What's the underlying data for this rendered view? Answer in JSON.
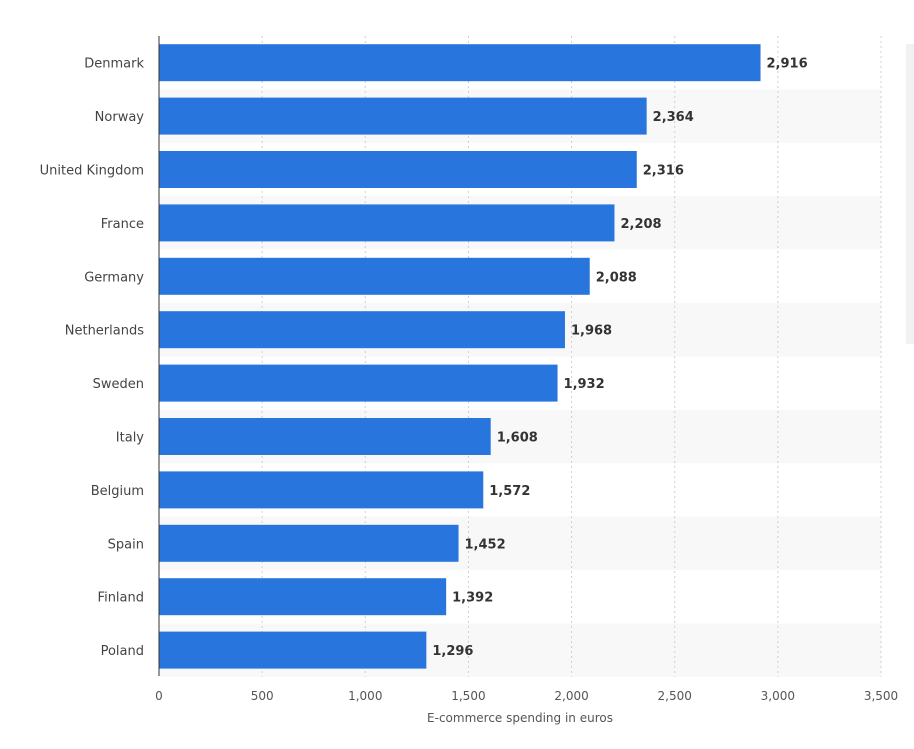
{
  "chart_data": {
    "type": "bar",
    "orientation": "horizontal",
    "categories": [
      "Denmark",
      "Norway",
      "United Kingdom",
      "France",
      "Germany",
      "Netherlands",
      "Sweden",
      "Italy",
      "Belgium",
      "Spain",
      "Finland",
      "Poland"
    ],
    "values": [
      2916,
      2364,
      2316,
      2208,
      2088,
      1968,
      1932,
      1608,
      1572,
      1452,
      1392,
      1296
    ],
    "value_labels": [
      "2,916",
      "2,364",
      "2,316",
      "2,208",
      "2,088",
      "1,968",
      "1,932",
      "1,608",
      "1,572",
      "1,452",
      "1,392",
      "1,296"
    ],
    "xlabel": "E-commerce spending in euros",
    "xlim": [
      0,
      3500
    ],
    "xticks": [
      0,
      500,
      1000,
      1500,
      2000,
      2500,
      3000,
      3500
    ],
    "xtick_labels": [
      "0",
      "500",
      "1,000",
      "1,500",
      "2,000",
      "2,500",
      "3,000",
      "3,500"
    ],
    "grid": true,
    "legend": "none",
    "colors": {
      "bar": "#2876dd",
      "band": "#f8f8f8",
      "grid": "#cfcfcf"
    }
  }
}
